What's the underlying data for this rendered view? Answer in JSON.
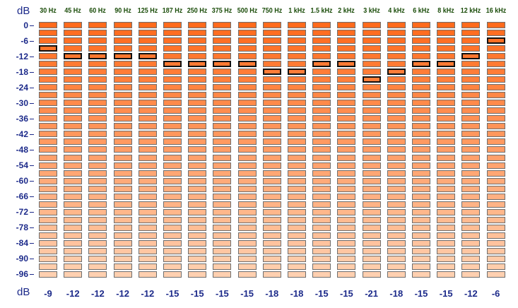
{
  "axis": {
    "unit_top": "dB",
    "unit_bottom": "dB",
    "ticks": [
      "0",
      "-6",
      "-12",
      "-18",
      "-24",
      "-30",
      "-36",
      "-42",
      "-48",
      "-54",
      "-60",
      "-66",
      "-72",
      "-78",
      "-84",
      "-90",
      "-96"
    ]
  },
  "bands": [
    {
      "label": "30 Hz",
      "value": "-9"
    },
    {
      "label": "45 Hz",
      "value": "-12"
    },
    {
      "label": "60 Hz",
      "value": "-12"
    },
    {
      "label": "90 Hz",
      "value": "-12"
    },
    {
      "label": "125 Hz",
      "value": "-12"
    },
    {
      "label": "187 Hz",
      "value": "-15"
    },
    {
      "label": "250 Hz",
      "value": "-15"
    },
    {
      "label": "375 Hz",
      "value": "-15"
    },
    {
      "label": "500 Hz",
      "value": "-15"
    },
    {
      "label": "750 Hz",
      "value": "-18"
    },
    {
      "label": "1 kHz",
      "value": "-18"
    },
    {
      "label": "1.5 kHz",
      "value": "-15"
    },
    {
      "label": "2 kHz",
      "value": "-15"
    },
    {
      "label": "3 kHz",
      "value": "-21"
    },
    {
      "label": "4 kHz",
      "value": "-18"
    },
    {
      "label": "6 kHz",
      "value": "-15"
    },
    {
      "label": "8 kHz",
      "value": "-15"
    },
    {
      "label": "12 kHz",
      "value": "-12"
    },
    {
      "label": "16 kHz",
      "value": "-6"
    }
  ],
  "levels": {
    "top_db": 0,
    "step_db": -3,
    "count": 33
  },
  "colors": {
    "top": "#ff6a1c",
    "bottom": "#ffd0b0",
    "text": "#1c2a8a",
    "header": "#1b4d0a",
    "selected_border": "#111111"
  }
}
